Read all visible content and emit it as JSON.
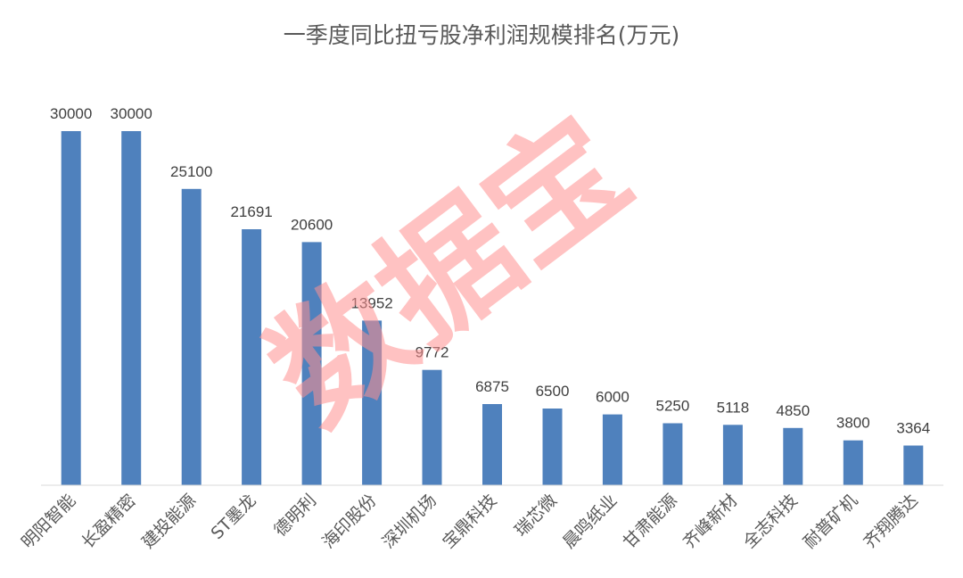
{
  "chart_data": {
    "type": "bar",
    "title": "一季度同比扭亏股净利润规模排名(万元)",
    "categories": [
      "明阳智能",
      "长盈精密",
      "建投能源",
      "ST墨龙",
      "德明利",
      "海印股份",
      "深圳机场",
      "宝鼎科技",
      "瑞芯微",
      "晨鸣纸业",
      "甘肃能源",
      "齐峰新材",
      "全志科技",
      "耐普矿机",
      "齐翔腾达"
    ],
    "values": [
      30000,
      30000,
      25100,
      21691,
      20600,
      13952,
      9772,
      6875,
      6500,
      6000,
      5250,
      5118,
      4850,
      3800,
      3364
    ],
    "ylim": [
      0,
      30000
    ],
    "grid": false,
    "legend": "none",
    "bar_color": "#4f81bd",
    "watermark": "数据宝",
    "watermark_color": "#ff8f8f"
  }
}
